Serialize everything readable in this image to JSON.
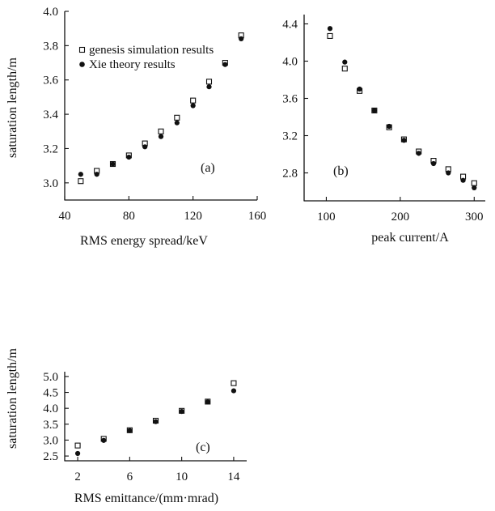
{
  "chart_data": [
    {
      "type": "scatter",
      "panel_label": "(a)",
      "xlabel": "RMS energy spread/keV",
      "ylabel": "saturation length/m",
      "xlim": [
        40,
        160
      ],
      "ylim": [
        2.9,
        4.0
      ],
      "xticks": [
        40,
        80,
        120,
        160
      ],
      "yticks": [
        3.0,
        3.2,
        3.4,
        3.6,
        3.8,
        4.0
      ],
      "ytick_labels": [
        "3.0",
        "3.2",
        "3.4",
        "3.6",
        "3.8",
        "4.0"
      ],
      "xtick_labels": [
        "40",
        "80",
        "120",
        "160"
      ],
      "legend": {
        "placement": "top-left"
      },
      "series": [
        {
          "name": "genesis simulation results",
          "marker": "open-square",
          "x": [
            50,
            60,
            70,
            80,
            90,
            100,
            110,
            120,
            130,
            140,
            150
          ],
          "y": [
            3.01,
            3.07,
            3.11,
            3.16,
            3.23,
            3.3,
            3.38,
            3.48,
            3.59,
            3.7,
            3.86
          ]
        },
        {
          "name": "Xie theory results",
          "marker": "filled-circle",
          "x": [
            50,
            60,
            70,
            80,
            90,
            100,
            110,
            120,
            130,
            140,
            150
          ],
          "y": [
            3.05,
            3.05,
            3.11,
            3.15,
            3.21,
            3.27,
            3.35,
            3.45,
            3.56,
            3.69,
            3.84
          ]
        }
      ]
    },
    {
      "type": "scatter",
      "panel_label": "(b)",
      "xlabel": "peak current/A",
      "ylabel": "",
      "xlim": [
        70,
        315
      ],
      "ylim": [
        2.5,
        4.5
      ],
      "xticks": [
        100,
        200,
        300
      ],
      "xtick_labels": [
        "100",
        "200",
        "300"
      ],
      "yticks": [
        2.8,
        3.2,
        3.6,
        4.0,
        4.4
      ],
      "ytick_labels": [
        "2.8",
        "3.2",
        "3.6",
        "4.0",
        "4.4"
      ],
      "series": [
        {
          "marker": "open-square",
          "x": [
            105,
            125,
            145,
            165,
            185,
            205,
            225,
            245,
            265,
            285,
            300
          ],
          "y": [
            4.27,
            3.92,
            3.68,
            3.47,
            3.29,
            3.16,
            3.03,
            2.93,
            2.84,
            2.76,
            2.69
          ]
        },
        {
          "marker": "filled-circle",
          "x": [
            105,
            125,
            145,
            165,
            185,
            205,
            225,
            245,
            265,
            285,
            300
          ],
          "y": [
            4.35,
            3.99,
            3.7,
            3.47,
            3.3,
            3.15,
            3.01,
            2.9,
            2.8,
            2.72,
            2.64
          ]
        }
      ]
    },
    {
      "type": "scatter",
      "panel_label": "(c)",
      "xlabel": "RMS emittance/(mm·mrad)",
      "ylabel": "saturation length/m",
      "xlim": [
        1,
        15
      ],
      "ylim": [
        2.35,
        5.15
      ],
      "xticks": [
        2,
        6,
        10,
        14
      ],
      "xtick_labels": [
        "2",
        "6",
        "10",
        "14"
      ],
      "yticks": [
        2.5,
        3.0,
        3.5,
        4.0,
        4.5,
        5.0
      ],
      "ytick_labels": [
        "2.5",
        "3.0",
        "3.5",
        "4.0",
        "4.5",
        "5.0"
      ],
      "series": [
        {
          "marker": "open-square",
          "x": [
            2,
            4,
            6,
            8,
            10,
            12,
            14
          ],
          "y": [
            2.83,
            3.04,
            3.31,
            3.61,
            3.92,
            4.21,
            4.79
          ]
        },
        {
          "marker": "filled-circle",
          "x": [
            2,
            4,
            6,
            8,
            10,
            12,
            14
          ],
          "y": [
            2.58,
            2.99,
            3.3,
            3.58,
            3.9,
            4.2,
            4.55
          ]
        }
      ]
    }
  ]
}
